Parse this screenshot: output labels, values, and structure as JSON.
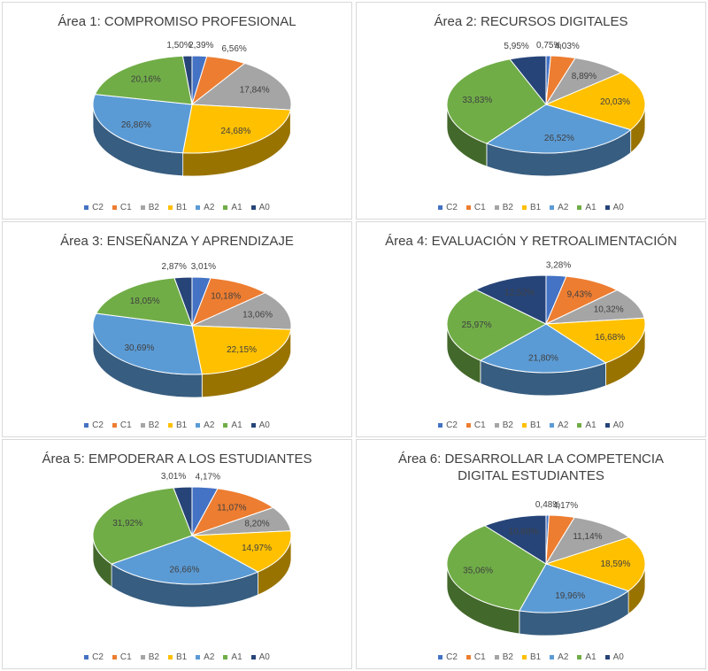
{
  "chart_data": [
    {
      "type": "pie",
      "title": "Área 1: COMPROMISO PROFESIONAL",
      "categories": [
        "C2",
        "C1",
        "B2",
        "B1",
        "A2",
        "A1",
        "A0"
      ],
      "values": [
        2.39,
        6.56,
        17.84,
        24.68,
        26.86,
        20.16,
        1.5
      ],
      "labels": [
        "2,39%",
        "6,56%",
        "17,84%",
        "24,68%",
        "26,86%",
        "20,16%",
        "1,50%"
      ],
      "legend": "bottom",
      "style": "3d"
    },
    {
      "type": "pie",
      "title": "Área 2: RECURSOS DIGITALES",
      "categories": [
        "C2",
        "C1",
        "B2",
        "B1",
        "A2",
        "A1",
        "A0"
      ],
      "values": [
        0.75,
        4.03,
        8.89,
        20.03,
        26.52,
        33.83,
        5.95
      ],
      "labels": [
        "0,75%",
        "4,03%",
        "8,89%",
        "20,03%",
        "26,52%",
        "33,83%",
        "5,95%"
      ],
      "legend": "bottom",
      "style": "3d"
    },
    {
      "type": "pie",
      "title": "Área 3: ENSEÑANZA Y APRENDIZAJE",
      "categories": [
        "C2",
        "C1",
        "B2",
        "B1",
        "A2",
        "A1",
        "A0"
      ],
      "values": [
        3.01,
        10.18,
        13.06,
        22.15,
        30.69,
        18.05,
        2.87
      ],
      "labels": [
        "3,01%",
        "10,18%",
        "13,06%",
        "22,15%",
        "30,69%",
        "18,05%",
        "2,87%"
      ],
      "legend": "bottom",
      "style": "3d"
    },
    {
      "type": "pie",
      "title": "Área 4: EVALUACIÓN Y RETROALIMENTACIÓN",
      "categories": [
        "C2",
        "C1",
        "B2",
        "B1",
        "A2",
        "A1",
        "A0"
      ],
      "values": [
        3.28,
        9.43,
        10.32,
        16.68,
        21.8,
        25.97,
        12.52
      ],
      "labels": [
        "3,28%",
        "9,43%",
        "10,32%",
        "16,68%",
        "21,80%",
        "25,97%",
        "12,52%"
      ],
      "legend": "bottom",
      "style": "3d"
    },
    {
      "type": "pie",
      "title": "Área 5: EMPODERAR A LOS ESTUDIANTES",
      "categories": [
        "C2",
        "C1",
        "B2",
        "B1",
        "A2",
        "A1",
        "A0"
      ],
      "values": [
        4.17,
        11.07,
        8.2,
        14.97,
        26.66,
        31.92,
        3.01
      ],
      "labels": [
        "4,17%",
        "11,07%",
        "8,20%",
        "14,97%",
        "26,66%",
        "31,92%",
        "3,01%"
      ],
      "legend": "bottom",
      "style": "3d"
    },
    {
      "type": "pie",
      "title": "Área 6: DESARROLLAR LA COMPETENCIA DIGITAL ESTUDIANTES",
      "categories": [
        "C2",
        "C1",
        "B2",
        "B1",
        "A2",
        "A1",
        "A0"
      ],
      "values": [
        0.48,
        4.17,
        11.14,
        18.59,
        19.96,
        35.06,
        10.6
      ],
      "labels": [
        "0,48%",
        "4,17%",
        "11,14%",
        "18,59%",
        "19,96%",
        "35,06%",
        "10,60%"
      ],
      "legend": "bottom",
      "style": "3d"
    }
  ],
  "colors": {
    "C2": "#4472c4",
    "C1": "#ed7d31",
    "B2": "#a5a5a5",
    "B1": "#ffc000",
    "A2": "#5b9bd5",
    "A1": "#70ad47",
    "A0": "#264478"
  }
}
